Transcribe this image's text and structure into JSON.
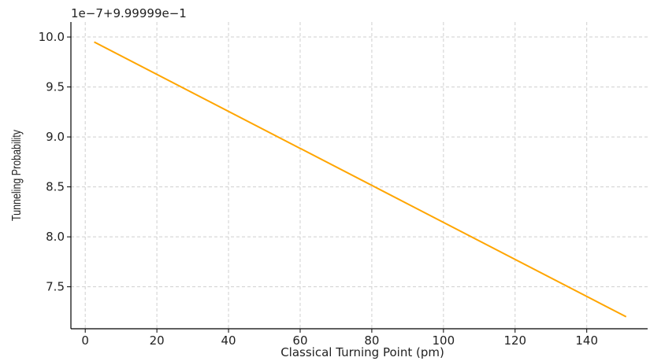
{
  "chart_data": {
    "type": "line",
    "xlabel": "Classical Turning Point (pm)",
    "ylabel": "Tunneling Probability",
    "y_offset_text": "1e−7+9.99999e−1",
    "xlim": [
      -4,
      157
    ],
    "ylim": [
      7.08,
      10.15
    ],
    "x_ticks": [
      0,
      20,
      40,
      60,
      80,
      100,
      120,
      140
    ],
    "x_tick_labels": [
      "0",
      "20",
      "40",
      "60",
      "80",
      "100",
      "120",
      "140"
    ],
    "y_ticks": [
      7.5,
      8.0,
      8.5,
      9.0,
      9.5,
      10.0
    ],
    "y_tick_labels": [
      "7.5",
      "8.0",
      "8.5",
      "9.0",
      "9.5",
      "10.0"
    ],
    "grid": true,
    "series": [
      {
        "color": "#FFA500",
        "x": [
          2.5,
          151
        ],
        "y": [
          9.95,
          7.2
        ]
      }
    ]
  }
}
